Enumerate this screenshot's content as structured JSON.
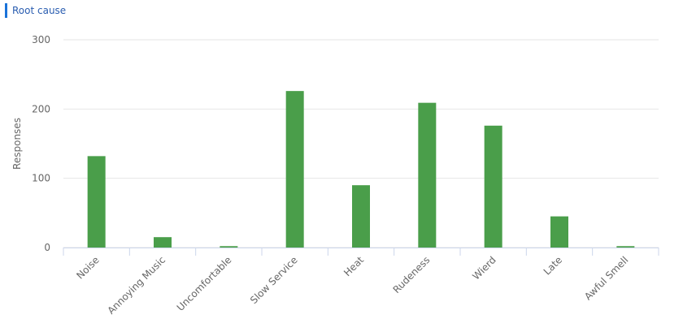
{
  "chart_data": {
    "type": "bar",
    "title": "Root cause",
    "y_label": "Responses",
    "categories": [
      "Noise",
      "Annoying Music",
      "Uncomfortable",
      "Slow Service",
      "Heat",
      "Rudeness",
      "Wierd",
      "Late",
      "Awful Smell"
    ],
    "values": [
      132,
      15,
      2,
      226,
      90,
      209,
      176,
      45,
      2
    ],
    "color": "#4a9e4a",
    "ylim": [
      0,
      300
    ],
    "yticks": [
      0,
      100,
      200,
      300
    ],
    "grid": true
  }
}
